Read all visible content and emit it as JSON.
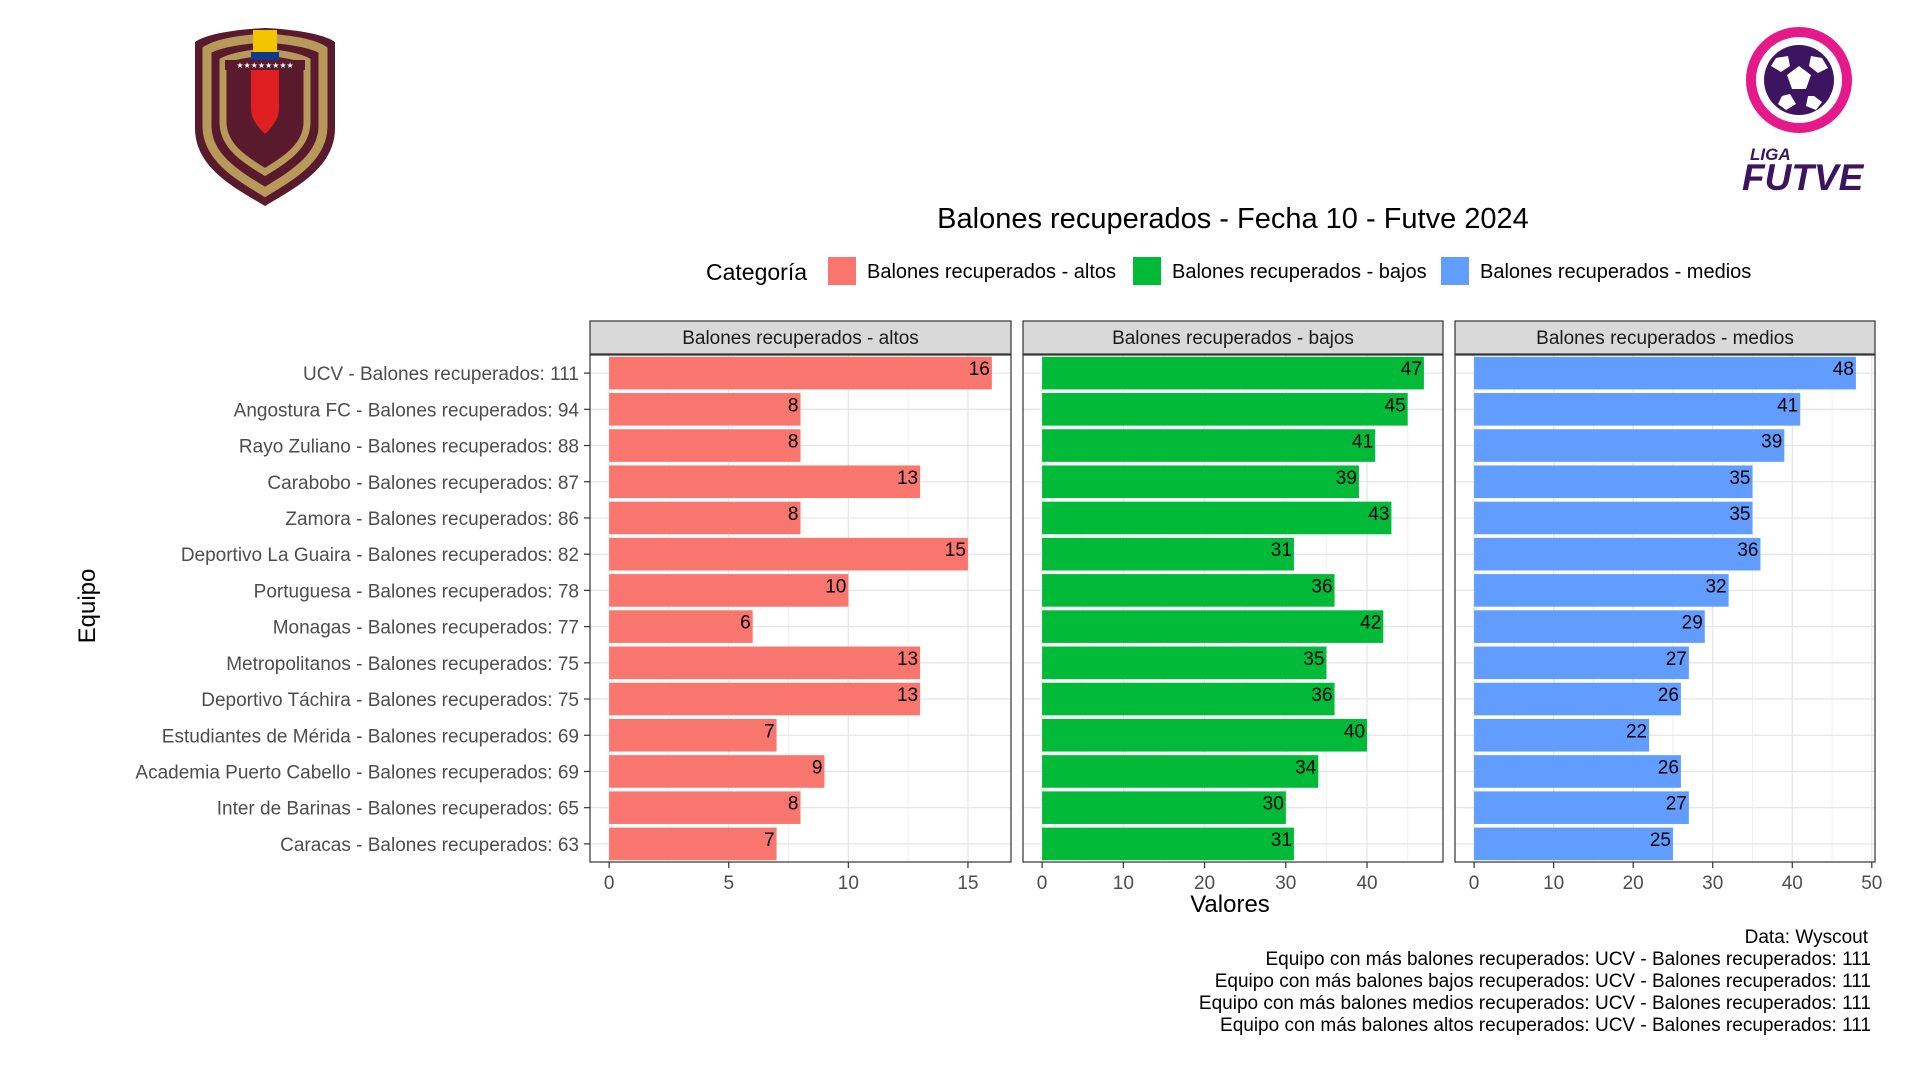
{
  "logos": {
    "left": {
      "icon": "venezuelan-federation-crest-icon",
      "colors": [
        "#5a1a2e",
        "#b79a5a",
        "#f2c500",
        "#123a8c",
        "#e02020"
      ]
    },
    "right": {
      "icon": "liga-futve-logo-icon",
      "line1": "LIGA",
      "line2": "FUTVE",
      "colors": [
        "#e5198a",
        "#3d1460"
      ]
    }
  },
  "legend": {
    "title": "Categoría",
    "position": "top",
    "items": [
      {
        "label": "Balones recuperados - altos",
        "color": "#F8766D"
      },
      {
        "label": "Balones recuperados - bajos",
        "color": "#00BA38"
      },
      {
        "label": "Balones recuperados - medios",
        "color": "#619CFF"
      }
    ]
  },
  "caption": [
    "Data: Wyscout",
    "Equipo con más balones recuperados: UCV - Balones recuperados: 111",
    "Equipo con más balones bajos recuperados: UCV - Balones recuperados: 111",
    "Equipo con más balones medios recuperados: UCV - Balones recuperados: 111",
    "Equipo con más balones altos recuperados: UCV - Balones recuperados: 111"
  ],
  "chart_data": {
    "type": "bar",
    "orientation": "horizontal",
    "faceted": true,
    "title": "Balones recuperados - Fecha 10 - Futve 2024",
    "xlabel": "Valores",
    "ylabel": "Equipo",
    "grid": true,
    "categories": [
      "UCV - Balones recuperados: 111",
      "Angostura FC - Balones recuperados: 94",
      "Rayo Zuliano - Balones recuperados: 88",
      "Carabobo - Balones recuperados: 87",
      "Zamora - Balones recuperados: 86",
      "Deportivo La Guaira - Balones recuperados: 82",
      "Portuguesa - Balones recuperados: 78",
      "Monagas - Balones recuperados: 77",
      "Metropolitanos - Balones recuperados: 75",
      "Deportivo Táchira - Balones recuperados: 75",
      "Estudiantes de Mérida - Balones recuperados: 69",
      "Academia Puerto Cabello - Balones recuperados: 69",
      "Inter de Barinas - Balones recuperados: 65",
      "Caracas - Balones recuperados: 63"
    ],
    "series": [
      {
        "name": "Balones recuperados - altos",
        "color": "#F8766D",
        "values": [
          16,
          8,
          8,
          13,
          8,
          15,
          10,
          6,
          13,
          13,
          7,
          9,
          8,
          7
        ],
        "xlim": [
          -0.8,
          16.8
        ],
        "ticks": [
          0,
          5,
          10,
          15
        ]
      },
      {
        "name": "Balones recuperados - bajos",
        "color": "#00BA38",
        "values": [
          47,
          45,
          41,
          39,
          43,
          31,
          36,
          42,
          35,
          36,
          40,
          34,
          30,
          31
        ],
        "xlim": [
          -2.35,
          49.35
        ],
        "ticks": [
          0,
          10,
          20,
          30,
          40
        ]
      },
      {
        "name": "Balones recuperados - medios",
        "color": "#619CFF",
        "values": [
          48,
          41,
          39,
          35,
          35,
          36,
          32,
          29,
          27,
          26,
          22,
          26,
          27,
          25
        ],
        "xlim": [
          -2.4,
          50.4
        ],
        "ticks": [
          0,
          10,
          20,
          30,
          40,
          50
        ]
      }
    ]
  }
}
